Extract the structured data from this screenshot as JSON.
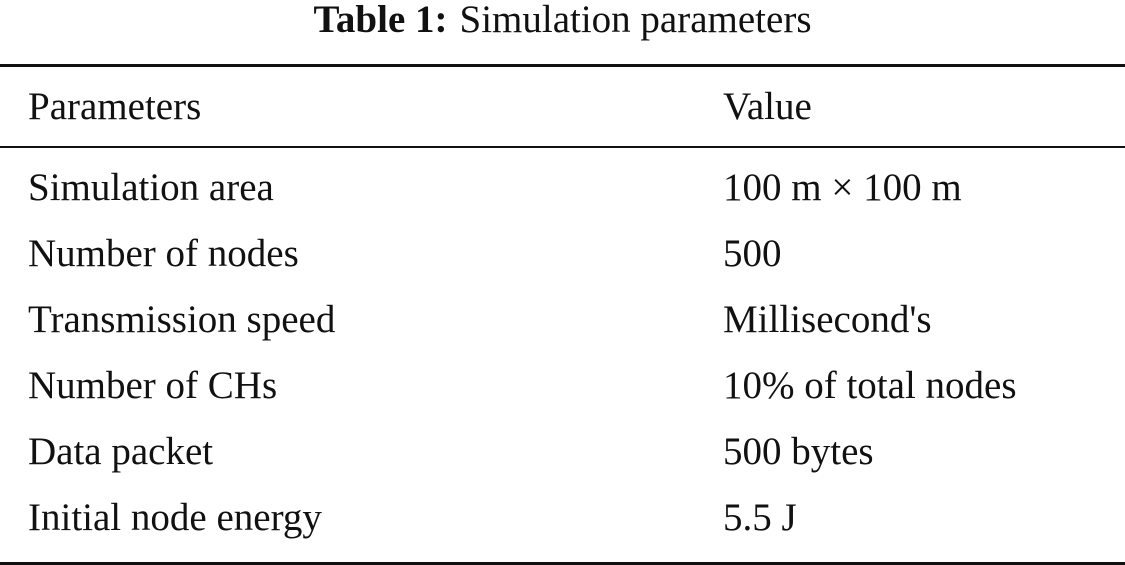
{
  "caption": {
    "label": "Table 1:",
    "title": "Simulation parameters"
  },
  "table": {
    "headers": [
      "Parameters",
      "Value"
    ],
    "rows": [
      [
        "Simulation area",
        "100 m × 100 m"
      ],
      [
        "Number of nodes",
        "500"
      ],
      [
        "Transmission speed",
        "Millisecond's"
      ],
      [
        "Number of CHs",
        "10% of total nodes"
      ],
      [
        "Data packet",
        "500 bytes"
      ],
      [
        "Initial node energy",
        "5.5 J"
      ]
    ]
  }
}
